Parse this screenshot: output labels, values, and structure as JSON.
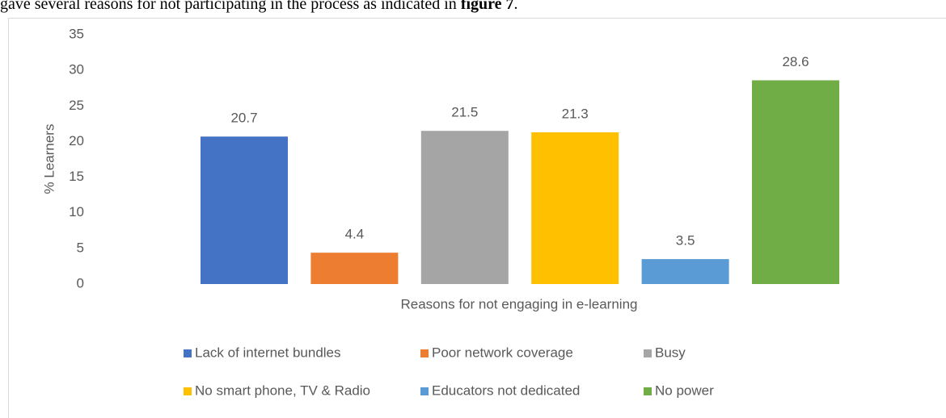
{
  "document_text": {
    "plain": "gave several reasons for not participating in the process as indicated in",
    "bold": "figure 7",
    "end": "."
  },
  "chart_data": {
    "type": "bar",
    "xlabel": "Reasons for not engaging in e-learning",
    "ylabel": "% Learners",
    "categories": [
      null
    ],
    "series": [
      {
        "name": "Lack of internet bundles",
        "color": "#4472c4",
        "values": [
          20.7
        ]
      },
      {
        "name": "Poor network coverage",
        "color": "#ed7d31",
        "values": [
          4.4
        ]
      },
      {
        "name": "Busy",
        "color": "#a5a5a5",
        "values": [
          21.5
        ]
      },
      {
        "name": "No smart phone, TV & Radio",
        "color": "#ffc000",
        "values": [
          21.3
        ]
      },
      {
        "name": "Educators not dedicated",
        "color": "#5b9bd5",
        "values": [
          3.5
        ]
      },
      {
        "name": "No power",
        "color": "#70ad47",
        "values": [
          28.6
        ]
      }
    ],
    "ylim": [
      0,
      35
    ],
    "yticks": [
      0,
      5,
      10,
      15,
      20,
      25,
      30,
      35
    ],
    "grid": false,
    "legend": "bottom",
    "data_labels": true
  }
}
